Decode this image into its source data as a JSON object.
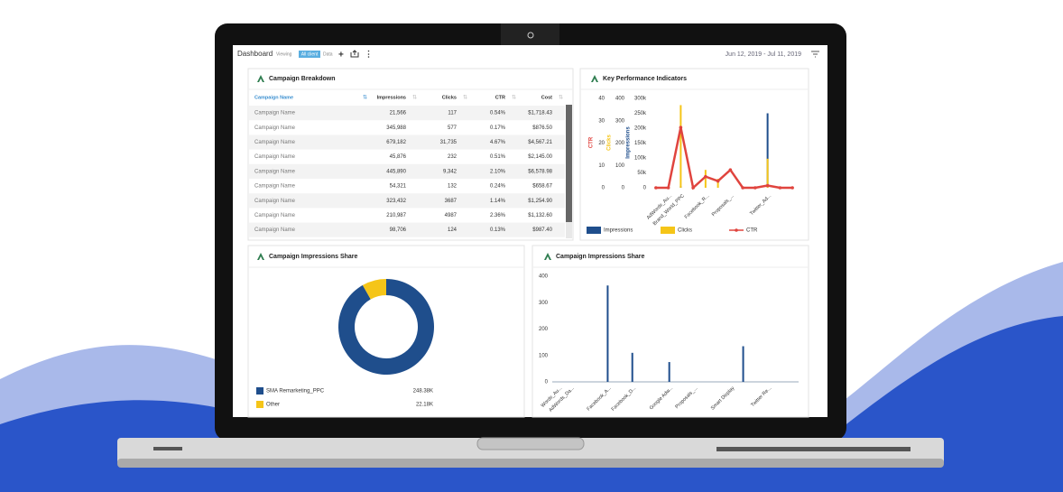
{
  "header": {
    "title": "Dashboard",
    "viewing": "Viewing",
    "badge": "All client",
    "data": "Data",
    "date_range": "Jun 12, 2019 - Jul 11, 2019"
  },
  "table": {
    "title": "Campaign Breakdown",
    "columns": [
      "Campaign Name",
      "Impressions",
      "Clicks",
      "CTR",
      "Cost"
    ],
    "rows": [
      [
        "Campaign Name",
        "21,566",
        "117",
        "0.54%",
        "$1,718.43"
      ],
      [
        "Campaign Name",
        "345,988",
        "577",
        "0.17%",
        "$876.50"
      ],
      [
        "Campaign Name",
        "679,182",
        "31,735",
        "4.67%",
        "$4,567.21"
      ],
      [
        "Campaign Name",
        "45,876",
        "232",
        "0.51%",
        "$2,145.00"
      ],
      [
        "Campaign Name",
        "445,890",
        "9,342",
        "2.10%",
        "$6,578.98"
      ],
      [
        "Campaign Name",
        "54,321",
        "132",
        "0.24%",
        "$658.67"
      ],
      [
        "Campaign Name",
        "323,432",
        "3687",
        "1.14%",
        "$1,254.90"
      ],
      [
        "Campaign Name",
        "210,987",
        "4987",
        "2.36%",
        "$1,132.60"
      ],
      [
        "Campaign Name",
        "98,706",
        "124",
        "0.13%",
        "$987.40"
      ]
    ]
  },
  "chart_data": [
    {
      "type": "combo",
      "title": "Key Performance Indicators",
      "categories": [
        null,
        "AdWords_Au...",
        "Brand_World_PPC",
        null,
        "Facebook_R...",
        null,
        "Proposals_...",
        null,
        null,
        "Twitter_Ad...",
        null,
        null
      ],
      "ylim": [
        0,
        40
      ],
      "yticks": [
        0,
        10,
        20,
        30,
        40
      ],
      "y2lim": [
        0,
        400
      ],
      "y2ticks": [
        0,
        100,
        200,
        300,
        400
      ],
      "y3lim": [
        0,
        300000
      ],
      "y3ticks": [
        0,
        {
          "value": 50000,
          "label": "50k"
        },
        {
          "value": 100000,
          "label": "100k"
        },
        {
          "value": 150000,
          "label": "150k"
        },
        {
          "value": 200000,
          "label": "200k"
        },
        {
          "value": 250000,
          "label": "250k"
        },
        {
          "value": 300000,
          "label": "300k"
        }
      ],
      "series": [
        {
          "name": "Impressions",
          "color": "#1f4e8c",
          "axis": "y3",
          "kind": "bar",
          "values": [
            0,
            0,
            5000,
            0,
            0,
            0,
            0,
            0,
            0,
            250000,
            0,
            0
          ]
        },
        {
          "name": "Clicks",
          "color": "#f5c518",
          "axis": "y2",
          "kind": "bar",
          "values": [
            0,
            0,
            370,
            0,
            80,
            40,
            0,
            0,
            0,
            130,
            0,
            0
          ]
        },
        {
          "name": "CTR",
          "color": "#e0443e",
          "axis": "y",
          "kind": "line",
          "values": [
            0,
            0,
            27,
            0,
            5,
            3,
            8,
            0,
            0,
            1,
            0,
            0
          ]
        }
      ]
    },
    {
      "type": "donut",
      "title": "Campaign Impressions Share",
      "categories": [
        "SMA Remarketing_PPC",
        "Other"
      ],
      "values": [
        248380,
        22180
      ],
      "value_labels": [
        "248.38K",
        "22.18K"
      ],
      "colors": [
        "#1f4e8c",
        "#f5c518"
      ]
    },
    {
      "type": "bar",
      "title": "Campaign Impressions Share",
      "categories": [
        "Words_Au...",
        "AdWords_Da...",
        null,
        null,
        "Facebook_A...",
        null,
        "Facebook_D...",
        null,
        null,
        "Google Adw...",
        null,
        "Proposals_...",
        null,
        null,
        "Smart Display",
        null,
        null,
        "Twitter Re...",
        null,
        null
      ],
      "values": [
        0,
        0,
        0,
        0,
        365,
        0,
        110,
        0,
        0,
        75,
        0,
        0,
        0,
        0,
        0,
        135,
        0,
        0,
        0,
        0
      ],
      "color": "#1f4e8c",
      "ylim": [
        0,
        400
      ],
      "yticks": [
        0,
        100,
        200,
        300,
        400
      ]
    }
  ]
}
